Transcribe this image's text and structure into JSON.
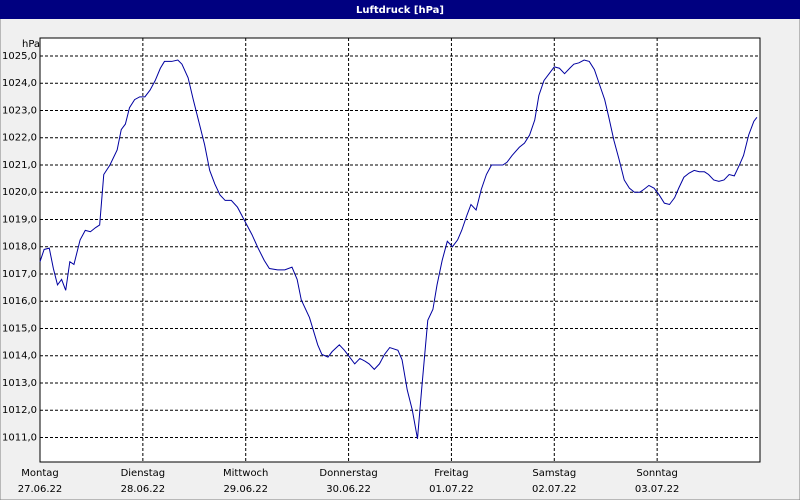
{
  "chart_data": {
    "type": "line",
    "title": "Luftdruck [hPa]",
    "y_label": "hPa",
    "x": [
      0,
      0.04,
      0.09,
      0.13,
      0.17,
      0.21,
      0.25,
      0.29,
      0.33,
      0.39,
      0.44,
      0.49,
      0.54,
      0.58,
      0.62,
      0.68,
      0.75,
      0.79,
      0.83,
      0.87,
      0.92,
      0.97,
      1.02,
      1.07,
      1.12,
      1.17,
      1.21,
      1.28,
      1.34,
      1.38,
      1.44,
      1.49,
      1.55,
      1.6,
      1.65,
      1.7,
      1.75,
      1.8,
      1.86,
      1.92,
      1.99,
      2.06,
      2.12,
      2.18,
      2.23,
      2.31,
      2.38,
      2.45,
      2.5,
      2.54,
      2.62,
      2.7,
      2.74,
      2.8,
      2.84,
      2.91,
      2.96,
      3.01,
      3.06,
      3.11,
      3.16,
      3.2,
      3.25,
      3.3,
      3.35,
      3.4,
      3.48,
      3.52,
      3.57,
      3.62,
      3.67,
      3.71,
      3.77,
      3.82,
      3.86,
      3.91,
      3.96,
      4.01,
      4.06,
      4.1,
      4.15,
      4.19,
      4.24,
      4.29,
      4.34,
      4.39,
      4.44,
      4.5,
      4.54,
      4.59,
      4.66,
      4.71,
      4.76,
      4.81,
      4.85,
      4.9,
      4.95,
      5,
      5.05,
      5.1,
      5.15,
      5.19,
      5.24,
      5.29,
      5.34,
      5.39,
      5.44,
      5.49,
      5.53,
      5.58,
      5.63,
      5.68,
      5.73,
      5.78,
      5.83,
      5.87,
      5.92,
      5.97,
      6.02,
      6.07,
      6.12,
      6.17,
      6.21,
      6.26,
      6.31,
      6.36,
      6.41,
      6.46,
      6.5,
      6.55,
      6.6,
      6.65,
      6.7,
      6.75,
      6.8,
      6.84,
      6.89,
      6.94,
      6.97
    ],
    "series": [
      {
        "name": "Luftdruck",
        "color": "#0000a0",
        "values": [
          1017.45,
          1017.9,
          1017.95,
          1017.2,
          1016.6,
          1016.8,
          1016.4,
          1017.45,
          1017.35,
          1018.25,
          1018.6,
          1018.55,
          1018.7,
          1018.8,
          1020.65,
          1021.0,
          1021.55,
          1022.3,
          1022.5,
          1023.1,
          1023.4,
          1023.5,
          1023.5,
          1023.75,
          1024.1,
          1024.55,
          1024.8,
          1024.8,
          1024.85,
          1024.7,
          1024.2,
          1023.4,
          1022.5,
          1021.75,
          1020.8,
          1020.3,
          1019.9,
          1019.7,
          1019.7,
          1019.45,
          1018.95,
          1018.45,
          1017.95,
          1017.5,
          1017.2,
          1017.15,
          1017.15,
          1017.25,
          1016.8,
          1016.05,
          1015.4,
          1014.4,
          1014.05,
          1013.95,
          1014.15,
          1014.4,
          1014.2,
          1013.95,
          1013.7,
          1013.9,
          1013.8,
          1013.7,
          1013.5,
          1013.7,
          1014.05,
          1014.3,
          1014.2,
          1013.85,
          1012.75,
          1012.0,
          1010.95,
          1012.75,
          1015.3,
          1015.7,
          1016.6,
          1017.5,
          1018.2,
          1018.0,
          1018.25,
          1018.6,
          1019.15,
          1019.55,
          1019.35,
          1020.1,
          1020.65,
          1021.0,
          1021.0,
          1021.0,
          1021.1,
          1021.35,
          1021.65,
          1021.8,
          1022.1,
          1022.65,
          1023.55,
          1024.1,
          1024.35,
          1024.6,
          1024.55,
          1024.35,
          1024.55,
          1024.7,
          1024.75,
          1024.85,
          1024.8,
          1024.5,
          1023.95,
          1023.4,
          1022.75,
          1021.9,
          1021.2,
          1020.45,
          1020.15,
          1020.0,
          1020.0,
          1020.1,
          1020.25,
          1020.15,
          1019.9,
          1019.6,
          1019.55,
          1019.8,
          1020.15,
          1020.55,
          1020.7,
          1020.8,
          1020.75,
          1020.75,
          1020.65,
          1020.45,
          1020.4,
          1020.45,
          1020.65,
          1020.6,
          1021.0,
          1021.35,
          1022.1,
          1022.6,
          1022.75
        ]
      }
    ],
    "xlim": [
      0,
      7
    ],
    "xticks": [
      {
        "value": 0,
        "label": "Montag"
      },
      {
        "value": 1,
        "label": "Dienstag"
      },
      {
        "value": 2,
        "label": "Mittwoch"
      },
      {
        "value": 3,
        "label": "Donnerstag"
      },
      {
        "value": 4,
        "label": "Freitag"
      },
      {
        "value": 5,
        "label": "Samstag"
      },
      {
        "value": 6,
        "label": "Sonntag"
      }
    ],
    "xtick_dates": [
      "27.06.22",
      "28.06.22",
      "29.06.22",
      "30.06.22",
      "01.07.22",
      "02.07.22",
      "03.07.22"
    ],
    "ylim": [
      1010.1,
      1025.66
    ],
    "yticks": [
      {
        "value": 1011,
        "label": "1011,0"
      },
      {
        "value": 1012,
        "label": "1012,0"
      },
      {
        "value": 1013,
        "label": "1013,0"
      },
      {
        "value": 1014,
        "label": "1014,0"
      },
      {
        "value": 1015,
        "label": "1015,0"
      },
      {
        "value": 1016,
        "label": "1016,0"
      },
      {
        "value": 1017,
        "label": "1017,0"
      },
      {
        "value": 1018,
        "label": "1018,0"
      },
      {
        "value": 1019,
        "label": "1019,0"
      },
      {
        "value": 1020,
        "label": "1020,0"
      },
      {
        "value": 1021,
        "label": "1021,0"
      },
      {
        "value": 1022,
        "label": "1022,0"
      },
      {
        "value": 1023,
        "label": "1023,0"
      },
      {
        "value": 1024,
        "label": "1024,0"
      },
      {
        "value": 1025,
        "label": "1025,0"
      }
    ],
    "grid": true
  }
}
